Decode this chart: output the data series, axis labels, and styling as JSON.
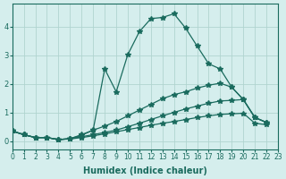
{
  "xlabel": "Humidex (Indice chaleur)",
  "ylabel": "",
  "background_color": "#d5eeed",
  "line_color": "#1a6b5e",
  "grid_color": "#b0d4d0",
  "xlim": [
    0,
    23
  ],
  "ylim": [
    -0.3,
    4.8
  ],
  "xticks": [
    0,
    1,
    2,
    3,
    4,
    5,
    6,
    7,
    8,
    9,
    10,
    11,
    12,
    13,
    14,
    15,
    16,
    17,
    18,
    19,
    20,
    21,
    22,
    23
  ],
  "yticks": [
    0,
    1,
    2,
    3,
    4
  ],
  "line1": [
    0.35,
    0.22,
    0.12,
    0.12,
    0.05,
    0.07,
    0.12,
    0.18,
    0.25,
    0.32,
    0.4,
    0.47,
    0.55,
    0.62,
    0.68,
    0.75,
    0.82,
    0.88,
    0.93,
    0.95,
    0.97,
    0.62,
    0.57
  ],
  "line2": [
    0.35,
    0.22,
    0.12,
    0.12,
    0.05,
    0.08,
    0.15,
    0.22,
    0.3,
    0.38,
    0.5,
    0.62,
    0.75,
    0.88,
    1.0,
    1.12,
    1.22,
    1.32,
    1.4,
    1.42,
    1.45,
    0.82,
    0.65
  ],
  "line3": [
    0.35,
    0.22,
    0.12,
    0.12,
    0.05,
    0.08,
    0.2,
    0.38,
    0.52,
    0.68,
    0.88,
    1.08,
    1.28,
    1.48,
    1.62,
    1.72,
    1.85,
    1.95,
    2.02,
    1.88,
    1.45,
    0.82,
    0.65
  ],
  "line4": [
    0.35,
    0.22,
    0.12,
    0.12,
    0.05,
    0.08,
    0.22,
    0.38,
    2.52,
    1.72,
    3.02,
    3.82,
    4.28,
    4.32,
    4.45,
    3.95,
    3.32,
    2.7,
    2.52,
    1.88,
    1.45,
    0.82,
    0.65
  ]
}
